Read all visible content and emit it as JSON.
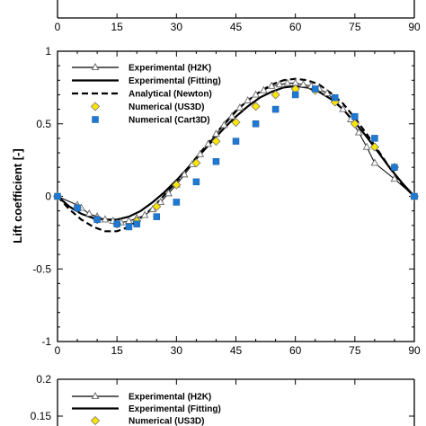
{
  "chart_data": [
    {
      "type": "line",
      "panel": "top (cropped)",
      "x_ticks": [
        "0",
        "15",
        "30",
        "45",
        "60",
        "75",
        "90"
      ]
    },
    {
      "type": "line",
      "panel": "middle",
      "ylabel": "Lift coefficient [-]",
      "xlim": [
        0,
        90
      ],
      "ylim": [
        -1,
        1
      ],
      "x_ticks": [
        "0",
        "15",
        "30",
        "45",
        "60",
        "75",
        "90"
      ],
      "y_ticks": [
        "-1",
        "-0.5",
        "0",
        "0.5",
        "1"
      ],
      "legend_placement": "top-left",
      "series": [
        {
          "name": "Experimental (H2K)",
          "style": "solid line with open triangle markers",
          "x": [
            0,
            5,
            6,
            8,
            10,
            12,
            14,
            16,
            18,
            20,
            22,
            24,
            26,
            28,
            30,
            32,
            34,
            36,
            38,
            40,
            42,
            44,
            46,
            48,
            50,
            52,
            54,
            56,
            58,
            60,
            62,
            64,
            66,
            68,
            70,
            72,
            74,
            76,
            78,
            80,
            85,
            90
          ],
          "y": [
            0,
            -0.06,
            -0.08,
            -0.12,
            -0.14,
            -0.16,
            -0.17,
            -0.18,
            -0.17,
            -0.15,
            -0.13,
            -0.09,
            -0.04,
            0.02,
            0.08,
            0.15,
            0.22,
            0.29,
            0.36,
            0.43,
            0.49,
            0.55,
            0.61,
            0.66,
            0.7,
            0.73,
            0.76,
            0.77,
            0.78,
            0.78,
            0.77,
            0.76,
            0.74,
            0.71,
            0.66,
            0.6,
            0.53,
            0.44,
            0.34,
            0.23,
            0.12,
            0
          ]
        },
        {
          "name": "Experimental (Fitting)",
          "style": "solid line",
          "x": [
            0,
            3,
            6,
            9,
            12,
            15,
            18,
            21,
            24,
            27,
            30,
            33,
            36,
            39,
            42,
            45,
            48,
            51,
            54,
            57,
            60,
            63,
            66,
            69,
            72,
            75,
            78,
            81,
            84,
            87,
            90
          ],
          "y": [
            0,
            -0.07,
            -0.12,
            -0.15,
            -0.16,
            -0.16,
            -0.14,
            -0.1,
            -0.04,
            0.03,
            0.11,
            0.2,
            0.29,
            0.38,
            0.47,
            0.55,
            0.62,
            0.68,
            0.72,
            0.75,
            0.76,
            0.75,
            0.72,
            0.67,
            0.6,
            0.51,
            0.41,
            0.3,
            0.19,
            0.09,
            0
          ]
        },
        {
          "name": "Analytical (Newton)",
          "style": "dashed line",
          "x": [
            0,
            3,
            6,
            9,
            12,
            15,
            18,
            21,
            24,
            27,
            30,
            33,
            36,
            39,
            42,
            45,
            48,
            51,
            54,
            57,
            60,
            63,
            66,
            69,
            72,
            75,
            78,
            81,
            84,
            87,
            90
          ],
          "y": [
            0,
            -0.09,
            -0.16,
            -0.21,
            -0.24,
            -0.24,
            -0.21,
            -0.15,
            -0.08,
            0.01,
            0.1,
            0.2,
            0.3,
            0.4,
            0.5,
            0.59,
            0.66,
            0.72,
            0.77,
            0.8,
            0.81,
            0.8,
            0.77,
            0.71,
            0.64,
            0.54,
            0.43,
            0.31,
            0.19,
            0.08,
            0
          ]
        },
        {
          "name": "Numerical (US3D)",
          "style": "yellow diamond markers",
          "color": "#ffe600",
          "x": [
            0,
            5,
            10,
            15,
            20,
            25,
            30,
            35,
            40,
            45,
            50,
            55,
            60,
            65,
            70,
            75,
            80,
            85,
            90
          ],
          "y": [
            0,
            -0.08,
            -0.16,
            -0.19,
            -0.17,
            -0.07,
            0.08,
            0.23,
            0.38,
            0.51,
            0.62,
            0.7,
            0.74,
            0.73,
            0.65,
            0.5,
            0.34,
            0.2,
            0
          ]
        },
        {
          "name": "Numerical (Cart3D)",
          "style": "blue square markers",
          "color": "#1f78d1",
          "x": [
            0,
            5,
            10,
            15,
            18,
            20,
            25,
            30,
            35,
            40,
            45,
            50,
            55,
            60,
            65,
            70,
            75,
            80,
            85,
            90
          ],
          "y": [
            0,
            -0.08,
            -0.16,
            -0.19,
            -0.21,
            -0.19,
            -0.14,
            -0.04,
            0.1,
            0.24,
            0.38,
            0.5,
            0.6,
            0.7,
            0.74,
            0.68,
            0.55,
            0.4,
            0.2,
            0
          ]
        }
      ]
    },
    {
      "type": "line",
      "panel": "bottom (cropped)",
      "y_ticks": [
        "0.2",
        "0.15"
      ],
      "legend": [
        "Experimental (H2K)",
        "Experimental (Fitting)",
        "Numerical (US3D)"
      ]
    }
  ]
}
